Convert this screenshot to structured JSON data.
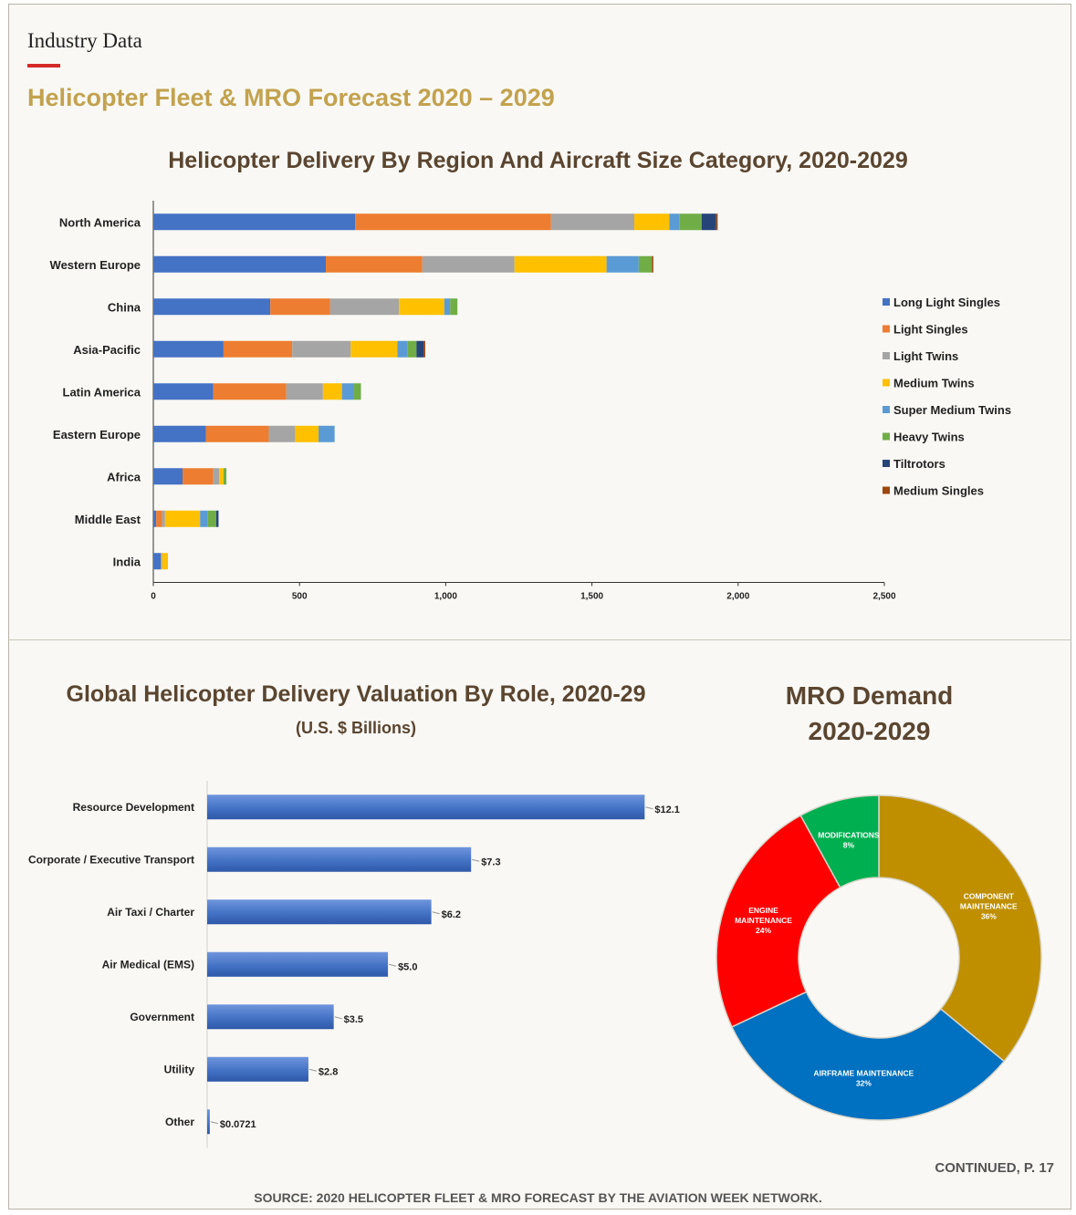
{
  "header": {
    "kicker": "Industry Data",
    "title": "Helicopter Fleet & MRO Forecast 2020 – 2029"
  },
  "footer": {
    "continued": "CONTINUED, P. 17",
    "source": "SOURCE: 2020 HELICOPTER FLEET & MRO FORECAST BY THE AVIATION WEEK NETWORK."
  },
  "colors": {
    "accent_red": "#d42a2a",
    "title_gold": "#c2a24e",
    "chart_title_brown": "#5a4530"
  },
  "chart_data": [
    {
      "type": "bar",
      "orientation": "horizontal",
      "stacked": true,
      "title": "Helicopter Delivery By Region And Aircraft Size Category, 2020-2029",
      "categories": [
        "North America",
        "Western Europe",
        "China",
        "Asia-Pacific",
        "Latin America",
        "Eastern Europe",
        "Africa",
        "Middle East",
        "India"
      ],
      "series": [
        {
          "name": "Long Light Singles",
          "color": "#4472c4",
          "values": [
            690,
            590,
            400,
            240,
            205,
            180,
            100,
            10,
            25
          ]
        },
        {
          "name": "Light Singles",
          "color": "#ed7d31",
          "values": [
            670,
            330,
            205,
            235,
            250,
            215,
            105,
            20,
            0
          ]
        },
        {
          "name": "Light Twins",
          "color": "#a5a5a5",
          "values": [
            285,
            315,
            235,
            200,
            125,
            90,
            20,
            10,
            5
          ]
        },
        {
          "name": "Medium Twins",
          "color": "#ffc000",
          "values": [
            120,
            315,
            155,
            160,
            65,
            80,
            15,
            120,
            20
          ]
        },
        {
          "name": "Super Medium Twins",
          "color": "#5b9bd5",
          "values": [
            35,
            110,
            20,
            35,
            40,
            55,
            0,
            25,
            0
          ]
        },
        {
          "name": "Heavy Twins",
          "color": "#70ad47",
          "values": [
            75,
            45,
            25,
            30,
            25,
            0,
            10,
            30,
            0
          ]
        },
        {
          "name": "Tiltrotors",
          "color": "#264478",
          "values": [
            50,
            0,
            0,
            25,
            0,
            0,
            0,
            8,
            0
          ]
        },
        {
          "name": "Medium Singles",
          "color": "#9e480e",
          "values": [
            5,
            5,
            0,
            5,
            0,
            0,
            0,
            0,
            0
          ]
        }
      ],
      "xlim": [
        0,
        2500
      ],
      "xticks": [
        0,
        500,
        1000,
        1500,
        2000,
        2500
      ],
      "xtick_labels": [
        "0",
        "500",
        "1,000",
        "1,500",
        "2,000",
        "2,500"
      ],
      "legend_position": "right"
    },
    {
      "type": "bar",
      "orientation": "horizontal",
      "title": "Global Helicopter Delivery Valuation By Role, 2020-29",
      "subtitle": "(U.S. $ Billions)",
      "categories": [
        "Resource Development",
        "Corporate / Executive Transport",
        "Air Taxi / Charter",
        "Air Medical (EMS)",
        "Government",
        "Utility",
        "Other"
      ],
      "values": [
        12.1,
        7.3,
        6.2,
        5.0,
        3.5,
        2.8,
        0.0721
      ],
      "value_labels": [
        "$12.1",
        "$7.3",
        "$6.2",
        "$5.0",
        "$3.5",
        "$2.8",
        "$0.0721"
      ],
      "xlim": [
        0,
        13
      ],
      "bar_color": "#4472c4"
    },
    {
      "type": "pie",
      "donut": true,
      "title_line1": "MRO Demand",
      "title_line2": "2020-2029",
      "slices": [
        {
          "label_line1": "COMPONENT",
          "label_line2": "MAINTENANCE",
          "pct_label": "36%",
          "value": 36,
          "color": "#bf8f00"
        },
        {
          "label_line1": "AIRFRAME MAINTENANCE",
          "label_line2": "",
          "pct_label": "32%",
          "value": 32,
          "color": "#0070c0"
        },
        {
          "label_line1": "ENGINE",
          "label_line2": "MAINTENANCE",
          "pct_label": "24%",
          "value": 24,
          "color": "#ff0000"
        },
        {
          "label_line1": "MODIFICATIONS",
          "label_line2": "",
          "pct_label": "8%",
          "value": 8,
          "color": "#00b050"
        }
      ]
    }
  ]
}
